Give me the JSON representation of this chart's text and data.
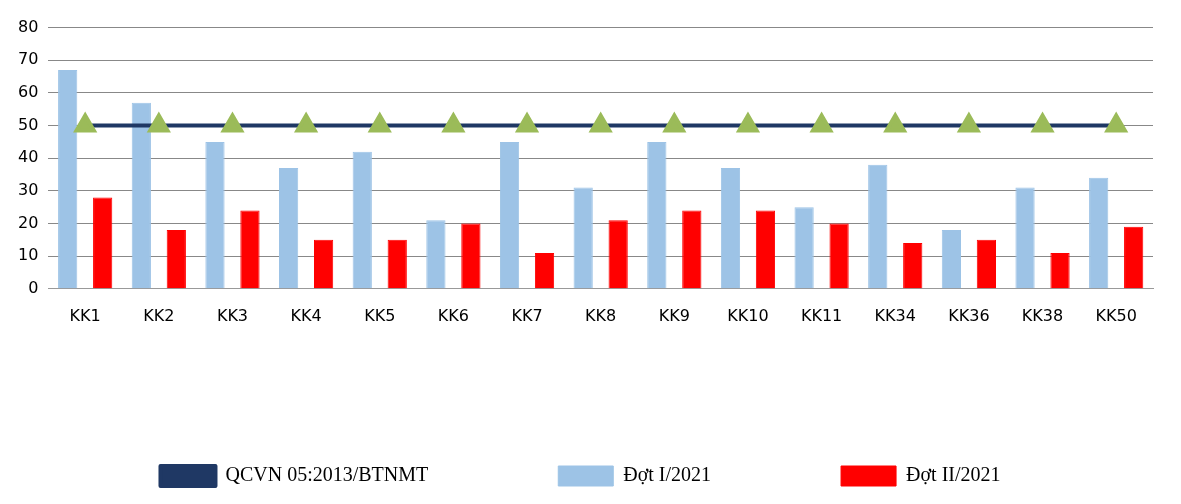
{
  "chart_data": {
    "type": "bar",
    "categories": [
      "KK1",
      "KK2",
      "KK3",
      "KK4",
      "KK5",
      "KK6",
      "KK7",
      "KK8",
      "KK9",
      "KK10",
      "KK11",
      "KK34",
      "KK36",
      "KK38",
      "KK50"
    ],
    "series": [
      {
        "name": "Đợt I/2021",
        "color": "#9dc3e6",
        "values": [
          67,
          57,
          45,
          37,
          42,
          21,
          45,
          31,
          45,
          37,
          25,
          38,
          18,
          31,
          34
        ]
      },
      {
        "name": "Đợt II/2021",
        "color": "#ff0000",
        "values": [
          28,
          18,
          24,
          15,
          15,
          20,
          11,
          21,
          24,
          24,
          20,
          14,
          15,
          11,
          19
        ]
      },
      {
        "name": "QCVN 05:2013/BTNMT",
        "type": "line",
        "color": "#1f3864",
        "colors": [
          "#9bbb59",
          "#9bbb59",
          "#9bbb59",
          "#9bbb59",
          "#9bbb59",
          "#9bbb59",
          "#9bbb59",
          "#9bbb59",
          "#9bbb59",
          "#9bbb59",
          "#9bbb59",
          "#9bbb59",
          "#9bbb59",
          "#9bbb59",
          "#9bbb59"
        ],
        "marker": "triangle",
        "values": [
          50,
          50,
          50,
          50,
          50,
          50,
          50,
          50,
          50,
          50,
          50,
          50,
          50,
          50,
          50
        ]
      }
    ],
    "ylim": [
      0,
      80
    ],
    "yticks": [
      0,
      10,
      20,
      30,
      40,
      50,
      60,
      70,
      80
    ],
    "grid": "y",
    "legend": "bottom"
  }
}
